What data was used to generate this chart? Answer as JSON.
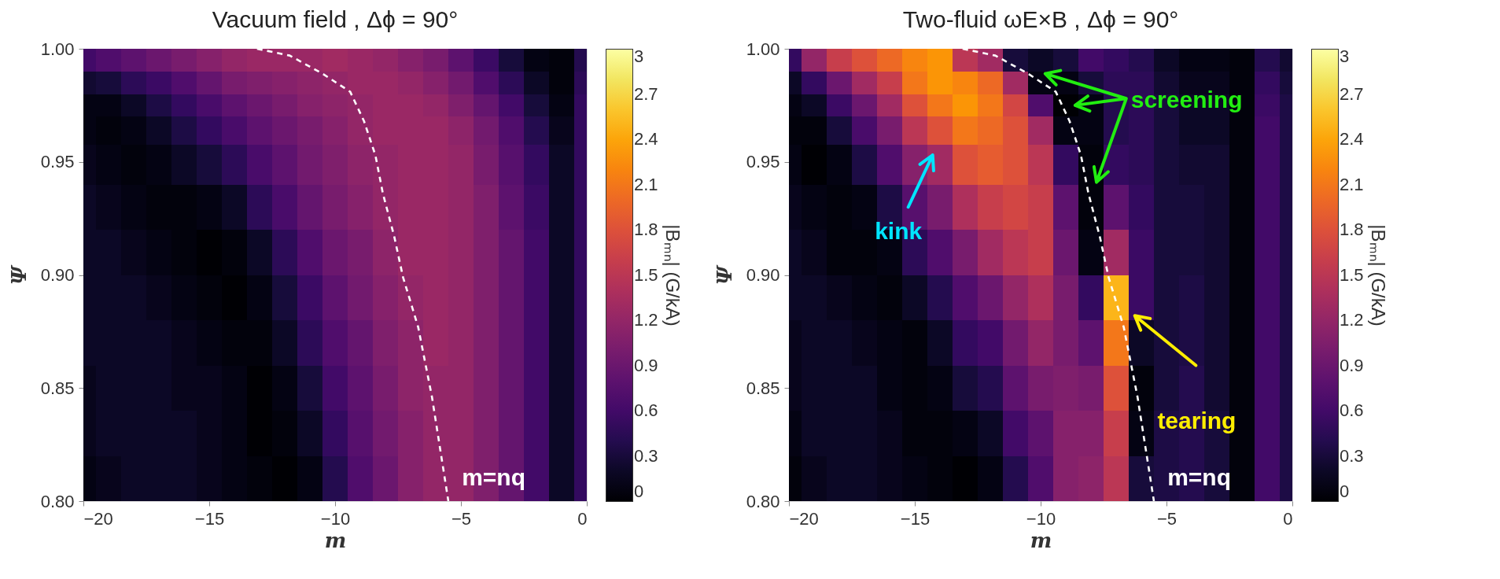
{
  "chart_data": [
    {
      "type": "heatmap",
      "title": "Vacuum field , Δϕ = 90°",
      "xlabel": "m",
      "ylabel": "Ψ",
      "clabel": "|Bₘₙ| (G/kA)",
      "x": [
        -20,
        -19,
        -18,
        -17,
        -16,
        -15,
        -14,
        -13,
        -12,
        -11,
        -10,
        -9,
        -8,
        -7,
        -6,
        -5,
        -4,
        -3,
        -2,
        -1,
        0
      ],
      "y": [
        0.995,
        0.985,
        0.975,
        0.965,
        0.95,
        0.93,
        0.91,
        0.89,
        0.87,
        0.85,
        0.83,
        0.81
      ],
      "cells": [
        [
          0.6,
          0.7,
          0.8,
          0.9,
          1.0,
          1.1,
          1.2,
          1.25,
          1.25,
          1.25,
          1.3,
          1.25,
          1.2,
          1.1,
          1.0,
          0.8,
          0.55,
          0.3,
          0.1,
          0.05,
          0.4
        ],
        [
          0.25,
          0.3,
          0.45,
          0.55,
          0.7,
          0.85,
          1.0,
          1.05,
          1.1,
          1.15,
          1.2,
          1.25,
          1.25,
          1.2,
          1.1,
          0.95,
          0.7,
          0.45,
          0.2,
          0.05,
          0.45
        ],
        [
          0.1,
          0.1,
          0.2,
          0.35,
          0.5,
          0.65,
          0.8,
          0.9,
          1.0,
          1.1,
          1.15,
          1.2,
          1.25,
          1.25,
          1.2,
          1.05,
          0.85,
          0.6,
          0.3,
          0.1,
          0.5
        ],
        [
          0.1,
          0.05,
          0.1,
          0.2,
          0.35,
          0.5,
          0.65,
          0.8,
          0.9,
          1.0,
          1.1,
          1.2,
          1.25,
          1.25,
          1.25,
          1.15,
          0.95,
          0.7,
          0.4,
          0.15,
          0.5
        ],
        [
          0.15,
          0.1,
          0.05,
          0.1,
          0.2,
          0.3,
          0.45,
          0.65,
          0.8,
          0.95,
          1.05,
          1.15,
          1.2,
          1.25,
          1.25,
          1.2,
          1.0,
          0.75,
          0.5,
          0.2,
          0.5
        ],
        [
          0.2,
          0.15,
          0.1,
          0.05,
          0.05,
          0.1,
          0.2,
          0.45,
          0.65,
          0.85,
          1.0,
          1.1,
          1.2,
          1.25,
          1.25,
          1.2,
          1.05,
          0.8,
          0.55,
          0.2,
          0.5
        ],
        [
          0.2,
          0.2,
          0.15,
          0.1,
          0.05,
          0.0,
          0.05,
          0.2,
          0.45,
          0.7,
          0.9,
          1.0,
          1.15,
          1.25,
          1.25,
          1.2,
          1.05,
          0.85,
          0.6,
          0.2,
          0.5
        ],
        [
          0.2,
          0.2,
          0.2,
          0.15,
          0.1,
          0.05,
          0.0,
          0.1,
          0.3,
          0.55,
          0.8,
          0.95,
          1.1,
          1.2,
          1.25,
          1.2,
          1.05,
          0.85,
          0.6,
          0.2,
          0.5
        ],
        [
          0.2,
          0.2,
          0.2,
          0.2,
          0.15,
          0.1,
          0.05,
          0.05,
          0.2,
          0.45,
          0.7,
          0.85,
          1.05,
          1.15,
          1.25,
          1.2,
          1.05,
          0.85,
          0.6,
          0.2,
          0.5
        ],
        [
          0.15,
          0.2,
          0.2,
          0.2,
          0.15,
          0.15,
          0.1,
          0.0,
          0.1,
          0.3,
          0.6,
          0.8,
          1.0,
          1.15,
          1.2,
          1.2,
          1.05,
          0.85,
          0.6,
          0.2,
          0.5
        ],
        [
          0.15,
          0.2,
          0.2,
          0.2,
          0.2,
          0.15,
          0.1,
          0.0,
          0.05,
          0.2,
          0.5,
          0.75,
          0.95,
          1.1,
          1.2,
          1.2,
          1.05,
          0.85,
          0.6,
          0.2,
          0.5
        ],
        [
          0.1,
          0.15,
          0.2,
          0.2,
          0.2,
          0.15,
          0.1,
          0.05,
          0.0,
          0.1,
          0.4,
          0.7,
          0.9,
          1.1,
          1.2,
          1.2,
          1.05,
          0.85,
          0.6,
          0.2,
          0.5
        ]
      ],
      "series": [
        {
          "type": "line",
          "color": "#ffffff",
          "line_style": "dashed",
          "x": [
            -13.1,
            -11.8,
            -10.5,
            -9.4,
            -8.85,
            -8.4,
            -8.1,
            -7.65,
            -7.3,
            -6.7,
            -6.15,
            -5.5
          ],
          "values": [
            1.0,
            0.997,
            0.989,
            0.981,
            0.968,
            0.953,
            0.936,
            0.917,
            0.899,
            0.877,
            0.846,
            0.8
          ]
        }
      ],
      "annotations": [
        "m=nq"
      ],
      "xlim": [
        -20,
        0
      ],
      "xticks": [
        -20,
        -15,
        -10,
        -5,
        0
      ],
      "ylim": [
        0.8,
        1.0
      ],
      "yticks": [
        {
          "value": 0.8,
          "label": "0.80"
        },
        {
          "value": 0.85,
          "label": "0.85"
        },
        {
          "value": 0.9,
          "label": "0.90"
        },
        {
          "value": 0.95,
          "label": "0.95"
        },
        {
          "value": 1.0,
          "label": "1.00"
        }
      ],
      "clim": [
        0,
        3
      ],
      "cticks": [
        0,
        0.3,
        0.6,
        0.9,
        1.2,
        1.5,
        1.8,
        2.1,
        2.4,
        2.7,
        3
      ]
    },
    {
      "type": "heatmap",
      "title": "Two-fluid ωE×B , Δϕ = 90°",
      "xlabel": "m",
      "ylabel": "Ψ",
      "clabel": "|Bₘₙ| (G/kA)",
      "x": [
        -20,
        -19,
        -18,
        -17,
        -16,
        -15,
        -14,
        -13,
        -12,
        -11,
        -10,
        -9,
        -8,
        -7,
        -6,
        -5,
        -4,
        -3,
        -2,
        -1,
        0
      ],
      "y": [
        0.995,
        0.985,
        0.975,
        0.965,
        0.95,
        0.93,
        0.91,
        0.89,
        0.87,
        0.85,
        0.83,
        0.81
      ],
      "cells": [
        [
          0.5,
          1.2,
          1.6,
          1.8,
          2.0,
          2.2,
          2.3,
          1.5,
          1.3,
          0.3,
          0.2,
          0.3,
          0.6,
          0.5,
          0.4,
          0.2,
          0.1,
          0.1,
          0.05,
          0.4,
          0.25
        ],
        [
          0.2,
          0.5,
          0.9,
          1.3,
          1.6,
          2.1,
          2.3,
          2.2,
          2.0,
          1.3,
          0.1,
          0.1,
          0.3,
          0.45,
          0.45,
          0.25,
          0.15,
          0.15,
          0.05,
          0.5,
          0.3
        ],
        [
          0.1,
          0.2,
          0.55,
          0.9,
          1.3,
          1.8,
          2.1,
          2.3,
          2.1,
          1.7,
          0.7,
          0.0,
          0.1,
          0.4,
          0.45,
          0.3,
          0.2,
          0.2,
          0.05,
          0.55,
          0.35
        ],
        [
          0.05,
          0.05,
          0.3,
          0.65,
          1.0,
          1.5,
          1.8,
          2.1,
          2.0,
          1.8,
          1.3,
          0.1,
          0.1,
          0.4,
          0.45,
          0.3,
          0.2,
          0.2,
          0.05,
          0.6,
          0.35
        ],
        [
          0.1,
          0.0,
          0.1,
          0.35,
          0.7,
          1.1,
          1.3,
          1.8,
          1.9,
          1.8,
          1.5,
          0.5,
          0.05,
          0.5,
          0.45,
          0.3,
          0.25,
          0.25,
          0.05,
          0.6,
          0.35
        ],
        [
          0.15,
          0.1,
          0.05,
          0.1,
          0.35,
          0.75,
          1.0,
          1.4,
          1.6,
          1.7,
          1.6,
          0.8,
          0.05,
          0.8,
          0.5,
          0.3,
          0.3,
          0.25,
          0.05,
          0.6,
          0.35
        ],
        [
          0.2,
          0.15,
          0.05,
          0.05,
          0.1,
          0.45,
          0.7,
          1.0,
          1.3,
          1.5,
          1.6,
          0.9,
          0.1,
          1.3,
          0.55,
          0.3,
          0.3,
          0.25,
          0.05,
          0.6,
          0.35
        ],
        [
          0.2,
          0.2,
          0.15,
          0.1,
          0.05,
          0.2,
          0.4,
          0.7,
          0.9,
          1.2,
          1.4,
          1.0,
          0.5,
          2.5,
          0.55,
          0.3,
          0.35,
          0.25,
          0.05,
          0.6,
          0.35
        ],
        [
          0.15,
          0.2,
          0.2,
          0.15,
          0.1,
          0.05,
          0.2,
          0.5,
          0.6,
          0.95,
          1.2,
          1.0,
          0.8,
          2.1,
          0.2,
          0.3,
          0.35,
          0.25,
          0.05,
          0.6,
          0.35
        ],
        [
          0.15,
          0.2,
          0.2,
          0.2,
          0.1,
          0.05,
          0.1,
          0.3,
          0.4,
          0.8,
          1.0,
          1.05,
          1.0,
          1.8,
          0.05,
          0.3,
          0.4,
          0.25,
          0.05,
          0.6,
          0.35
        ],
        [
          0.1,
          0.2,
          0.2,
          0.2,
          0.15,
          0.05,
          0.05,
          0.1,
          0.2,
          0.6,
          0.8,
          1.1,
          1.1,
          1.6,
          0.1,
          0.35,
          0.4,
          0.3,
          0.05,
          0.6,
          0.35
        ],
        [
          0.05,
          0.15,
          0.2,
          0.2,
          0.15,
          0.1,
          0.05,
          0.0,
          0.1,
          0.4,
          0.7,
          1.1,
          1.15,
          1.5,
          0.3,
          0.35,
          0.4,
          0.3,
          0.05,
          0.6,
          0.35
        ]
      ],
      "series": [
        {
          "type": "line",
          "color": "#ffffff",
          "line_style": "dashed",
          "x": [
            -13.1,
            -11.8,
            -10.5,
            -9.4,
            -8.85,
            -8.4,
            -8.1,
            -7.65,
            -7.3,
            -6.7,
            -6.15,
            -5.5
          ],
          "values": [
            1.0,
            0.997,
            0.989,
            0.981,
            0.968,
            0.953,
            0.936,
            0.917,
            0.899,
            0.877,
            0.846,
            0.8
          ]
        }
      ],
      "annotations": [
        "kink",
        "screening",
        "tearing",
        "m=nq"
      ],
      "xlim": [
        -20,
        0
      ],
      "xticks": [
        -20,
        -15,
        -10,
        -5,
        0
      ],
      "ylim": [
        0.8,
        1.0
      ],
      "yticks": [
        {
          "value": 0.8,
          "label": "0.80"
        },
        {
          "value": 0.85,
          "label": "0.85"
        },
        {
          "value": 0.9,
          "label": "0.90"
        },
        {
          "value": 0.95,
          "label": "0.95"
        },
        {
          "value": 1.0,
          "label": "1.00"
        }
      ],
      "clim": [
        0,
        3
      ],
      "cticks": [
        0,
        0.3,
        0.6,
        0.9,
        1.2,
        1.5,
        1.8,
        2.1,
        2.4,
        2.7,
        3
      ]
    }
  ]
}
